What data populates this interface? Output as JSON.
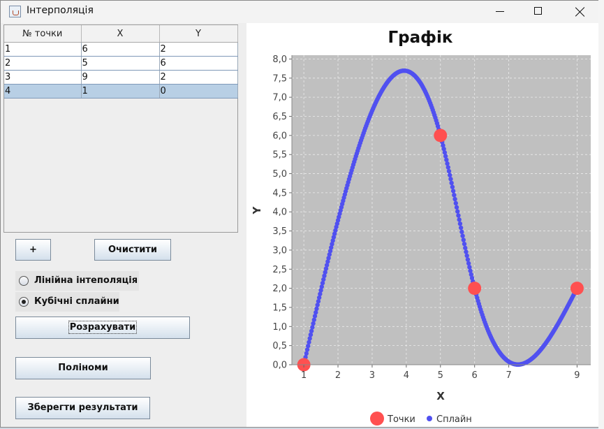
{
  "window": {
    "title": "Інтерполяція"
  },
  "table": {
    "headers": [
      "№ точки",
      "X",
      "Y"
    ],
    "rows": [
      [
        "1",
        "6",
        "2"
      ],
      [
        "2",
        "5",
        "6"
      ],
      [
        "3",
        "9",
        "2"
      ],
      [
        "4",
        "1",
        "0"
      ]
    ],
    "selected_row": 4
  },
  "buttons": {
    "add": "+",
    "clear": "Очистити",
    "calculate": "Розрахувати",
    "polynomials": "Поліноми",
    "save": "Зберегти результати"
  },
  "options": {
    "linear": "Лінійна інтеполяція",
    "cubic": "Кубічні сплайни",
    "selected": "cubic"
  },
  "colors": {
    "plot_background": "#c0c0c0",
    "points": "#ff5050",
    "spline": "#5050f0"
  },
  "chart_data": {
    "type": "line",
    "title": "Графік",
    "xlabel": "X",
    "ylabel": "Y",
    "xlim": [
      0.65,
      9.4
    ],
    "ylim": [
      0,
      8.1
    ],
    "xticks": [
      "1",
      "2",
      "3",
      "4",
      "5",
      "6",
      "7",
      "9"
    ],
    "yticks": [
      "0,0",
      "0,5",
      "1,0",
      "1,5",
      "2,0",
      "2,5",
      "3,0",
      "3,5",
      "4,0",
      "4,5",
      "5,0",
      "5,5",
      "6,0",
      "6,5",
      "7,0",
      "7,5",
      "8,0"
    ],
    "grid": true,
    "legend_position": "bottom",
    "series": [
      {
        "name": "Точки",
        "marker": "circle",
        "x": [
          1,
          5,
          6,
          9
        ],
        "y": [
          0,
          6,
          2,
          2
        ]
      },
      {
        "name": "Сплайн",
        "marker": "dot",
        "x": [
          1,
          5,
          6,
          9
        ],
        "y": [
          0,
          6,
          2,
          2
        ]
      }
    ]
  }
}
